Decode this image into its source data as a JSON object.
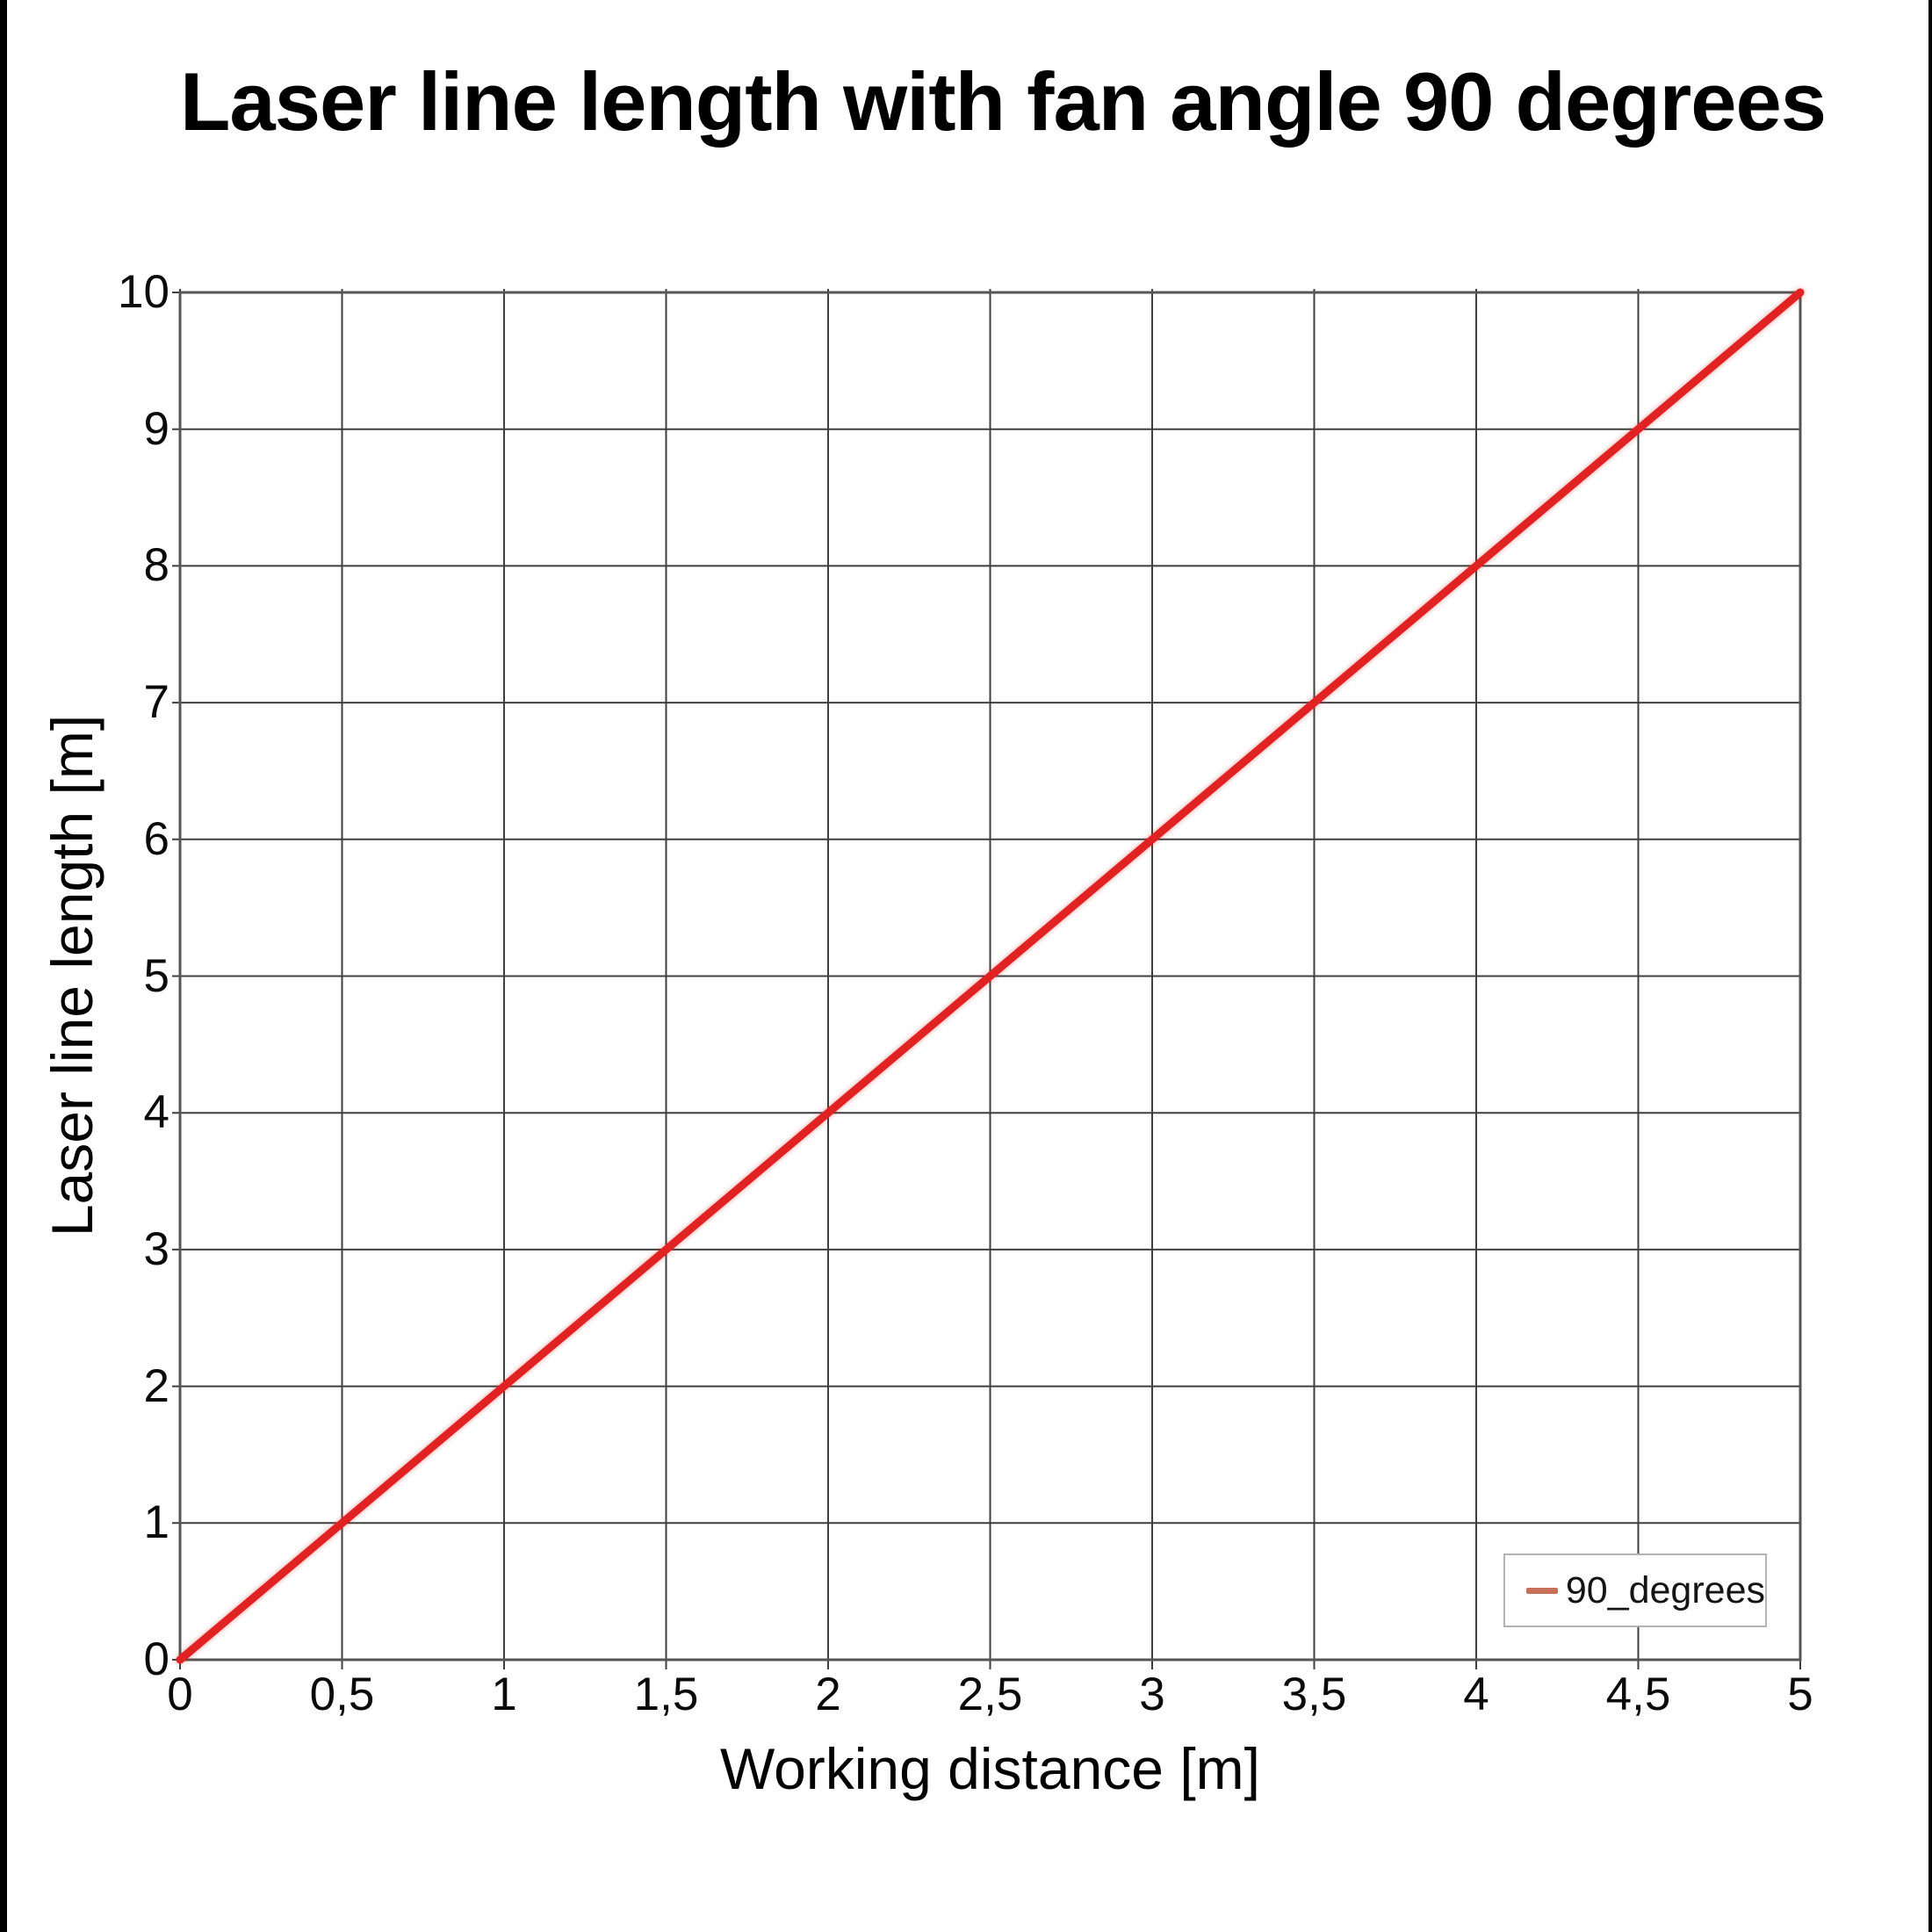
{
  "page": {
    "background": "#ffffff",
    "left_edge_bar_color": "#000000",
    "right_edge_bar_color": "#000000"
  },
  "chart_data": {
    "type": "line",
    "title": "Laser line length with fan angle 90 degrees",
    "xlabel": "Working distance [m]",
    "ylabel": "Laser line length [m]",
    "xlim": [
      0,
      5
    ],
    "ylim": [
      0,
      10
    ],
    "grid": true,
    "grid_color": "#3f3f3f",
    "border_color": "#555555",
    "x_ticks": {
      "values": [
        0,
        0.5,
        1,
        1.5,
        2,
        2.5,
        3,
        3.5,
        4,
        4.5,
        5
      ],
      "labels": [
        "0",
        "0,5",
        "1",
        "1,5",
        "2",
        "2,5",
        "3",
        "3,5",
        "4",
        "4,5",
        "5"
      ]
    },
    "y_ticks": {
      "values": [
        0,
        1,
        2,
        3,
        4,
        5,
        6,
        7,
        8,
        9,
        10
      ],
      "labels": [
        "0",
        "1",
        "2",
        "3",
        "4",
        "5",
        "6",
        "7",
        "8",
        "9",
        "10"
      ]
    },
    "series": [
      {
        "name": "90_degrees",
        "color": "#e02222",
        "x": [
          0,
          0.5,
          1,
          1.5,
          2,
          2.5,
          3,
          3.5,
          4,
          4.5,
          5
        ],
        "y": [
          0,
          1,
          2,
          3,
          4,
          5,
          6,
          7,
          8,
          9,
          10
        ]
      }
    ],
    "legend": {
      "position": "bottom-right",
      "entries": [
        {
          "label": "90_degrees",
          "marker_color": "#c8705a"
        }
      ]
    }
  }
}
